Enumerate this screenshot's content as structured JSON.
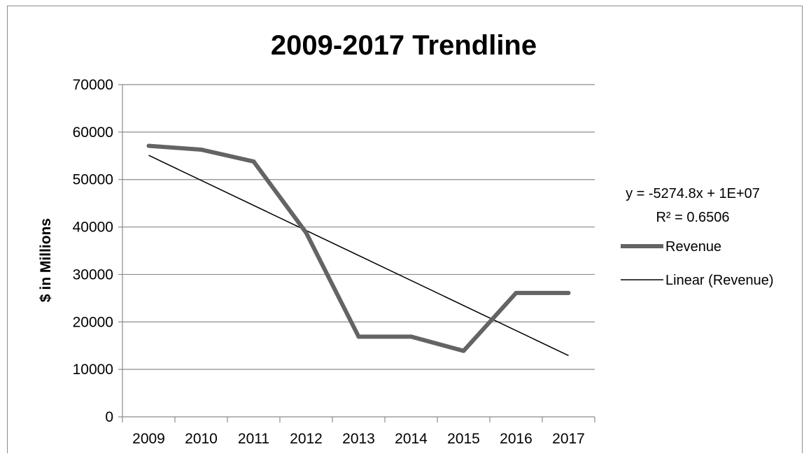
{
  "chart_data": {
    "type": "line",
    "title": "2009-2017 Trendline",
    "xlabel": "",
    "ylabel": "$ in Millions",
    "categories": [
      "2009",
      "2010",
      "2011",
      "2012",
      "2013",
      "2014",
      "2015",
      "2016",
      "2017"
    ],
    "series": [
      {
        "name": "Revenue",
        "values": [
          57100,
          56300,
          53800,
          38800,
          16900,
          16900,
          13900,
          26100,
          26100
        ],
        "color": "#646464"
      }
    ],
    "trendline": {
      "name": "Linear (Revenue)",
      "type": "linear",
      "start": 55100,
      "end": 12900,
      "color": "#000000",
      "equation": "y = -5274.8x + 1E+07",
      "r_squared": "R² = 0.6506"
    },
    "ylim": [
      0,
      70000
    ],
    "yticks": [
      "0",
      "10000",
      "20000",
      "30000",
      "40000",
      "50000",
      "60000",
      "70000"
    ],
    "grid": true,
    "legend_position": "right"
  }
}
